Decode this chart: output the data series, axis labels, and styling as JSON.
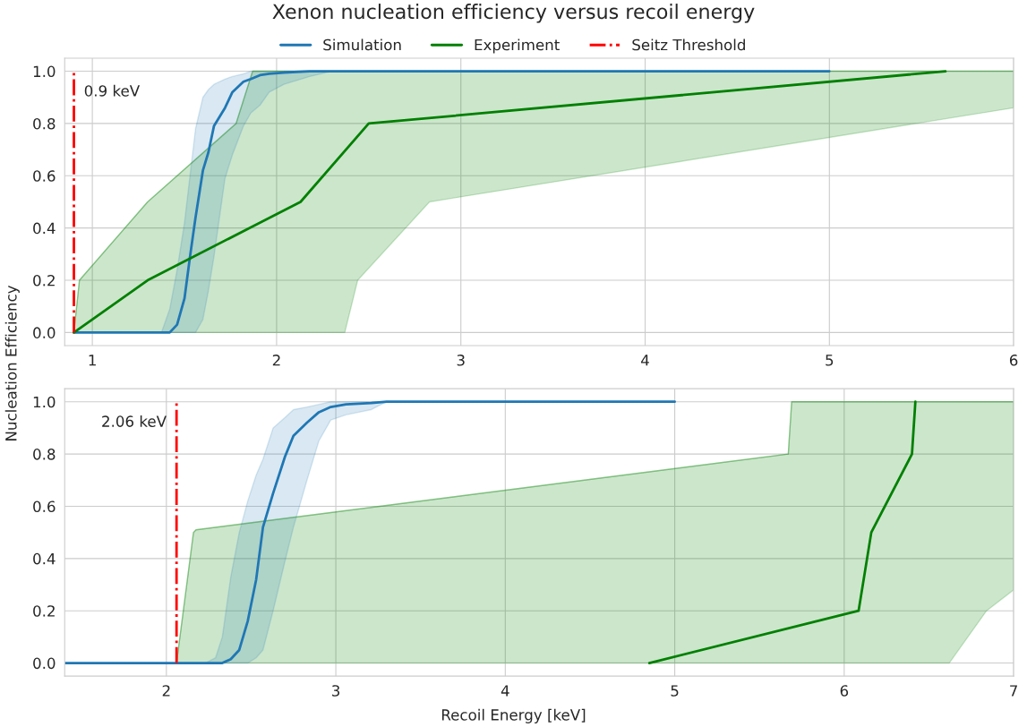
{
  "chart_data": [
    {
      "type": "line",
      "title": "Xenon nucleation efficiency versus recoil energy",
      "ylabel": "Nucleation Efficiency",
      "legend": "top",
      "grid": true,
      "xlim": [
        0.85,
        6
      ],
      "xticks": [
        1,
        2,
        3,
        4,
        5,
        6
      ],
      "ylim": [
        -0.05,
        1.05
      ],
      "yticks": [
        {
          "value": 0,
          "label": "0.0"
        },
        {
          "value": 0.2,
          "label": "0.2"
        },
        {
          "value": 0.4,
          "label": "0.4"
        },
        {
          "value": 0.6,
          "label": "0.6"
        },
        {
          "value": 0.8,
          "label": "0.8"
        },
        {
          "value": 1.0,
          "label": "1.0"
        }
      ],
      "ref_lines": [
        {
          "axis": "x",
          "value": 0.9,
          "label": "Seitz Threshold",
          "color": "#ff0000",
          "line_style": "dashdot"
        }
      ],
      "annotations": [
        {
          "text": "0.9 keV",
          "x": 0.9,
          "y": 0.92
        }
      ],
      "series": [
        {
          "color": "#008000",
          "x": [
            0.9,
            0.93,
            1.3,
            1.78,
            1.87,
            2.37,
            2.44,
            2.83,
            6
          ],
          "values": [
            0,
            0.2,
            0.5,
            0.8,
            1,
            1,
            1,
            1,
            1
          ],
          "lower": [
            0,
            0,
            0,
            0,
            0,
            0,
            0.2,
            0.5,
            0.86
          ],
          "upper": [
            0,
            0.2,
            0.5,
            0.8,
            1,
            1,
            1,
            1,
            1
          ]
        },
        {
          "name": "Simulation",
          "color": "#1f77b4",
          "x": [
            0.9,
            1.375,
            1.42,
            1.46,
            1.5,
            1.53,
            1.56,
            1.6,
            1.63,
            1.66,
            1.72,
            1.76,
            1.82,
            1.86,
            1.91,
            1.96,
            2.04,
            2.18,
            2.3,
            5
          ],
          "values": [
            0,
            0,
            0,
            0.03,
            0.13,
            0.29,
            0.44,
            0.62,
            0.69,
            0.79,
            0.86,
            0.92,
            0.96,
            0.97,
            0.985,
            0.99,
            0.995,
            1,
            1,
            1
          ],
          "lower": [
            0,
            0,
            0,
            0,
            0,
            0,
            0,
            0.05,
            0.16,
            0.29,
            0.59,
            0.68,
            0.79,
            0.84,
            0.87,
            0.92,
            0.95,
            0.98,
            1,
            1
          ],
          "upper": [
            0,
            0,
            0.09,
            0.24,
            0.42,
            0.6,
            0.78,
            0.9,
            0.93,
            0.95,
            0.97,
            0.98,
            0.99,
            1,
            1,
            1,
            1,
            1,
            1,
            1
          ]
        },
        {
          "name": "Experiment",
          "color": "#008000",
          "x": [
            0.9,
            1.3,
            2.13,
            2.5,
            5.63
          ],
          "values": [
            0,
            0.2,
            0.5,
            0.8,
            1.0
          ]
        }
      ]
    },
    {
      "type": "line",
      "xlabel": "Recoil Energy [keV]",
      "grid": true,
      "xlim": [
        1.4,
        7
      ],
      "xticks": [
        2,
        3,
        4,
        5,
        6,
        7
      ],
      "ylim": [
        -0.05,
        1.05
      ],
      "yticks": [
        {
          "value": 0,
          "label": "0.0"
        },
        {
          "value": 0.2,
          "label": "0.2"
        },
        {
          "value": 0.4,
          "label": "0.4"
        },
        {
          "value": 0.6,
          "label": "0.6"
        },
        {
          "value": 0.8,
          "label": "0.8"
        },
        {
          "value": 1.0,
          "label": "1.0"
        }
      ],
      "ref_lines": [
        {
          "axis": "x",
          "value": 2.06,
          "color": "#ff0000",
          "line_style": "dashdot"
        }
      ],
      "annotations": [
        {
          "text": "2.06 keV",
          "x": 2.06,
          "y": 0.92
        }
      ],
      "series": [
        {
          "color": "#008000",
          "x": [
            2.06,
            2.16,
            2.175,
            5.67,
            5.69,
            6.62,
            6.84,
            7
          ],
          "values": [
            0,
            0.5,
            0.51,
            0.8,
            1,
            1,
            1,
            1
          ],
          "lower": [
            0,
            0,
            0,
            0,
            0,
            0,
            0.2,
            0.28
          ],
          "upper": [
            0,
            0.5,
            0.51,
            0.8,
            1,
            1,
            1,
            1
          ]
        },
        {
          "color": "#1f77b4",
          "x": [
            1.4,
            2.23,
            2.29,
            2.33,
            2.38,
            2.43,
            2.48,
            2.53,
            2.57,
            2.63,
            2.7,
            2.75,
            2.83,
            2.9,
            2.97,
            3.06,
            3.21,
            3.3,
            5
          ],
          "values": [
            0,
            0,
            0,
            0,
            0.015,
            0.05,
            0.16,
            0.32,
            0.52,
            0.65,
            0.79,
            0.87,
            0.92,
            0.96,
            0.98,
            0.99,
            0.995,
            1,
            1
          ],
          "lower": [
            0,
            0,
            0,
            0,
            0,
            0,
            0,
            0.02,
            0.05,
            0.2,
            0.39,
            0.52,
            0.7,
            0.85,
            0.93,
            0.95,
            0.97,
            1,
            1
          ],
          "upper": [
            0,
            0,
            0.02,
            0.1,
            0.33,
            0.5,
            0.62,
            0.72,
            0.78,
            0.9,
            0.94,
            0.97,
            0.98,
            0.99,
            1,
            1,
            1,
            1,
            1
          ]
        },
        {
          "color": "#008000",
          "x": [
            4.85,
            6.085,
            6.16,
            6.4,
            6.42
          ],
          "values": [
            0,
            0.2,
            0.5,
            0.8,
            1.0
          ]
        }
      ]
    }
  ]
}
